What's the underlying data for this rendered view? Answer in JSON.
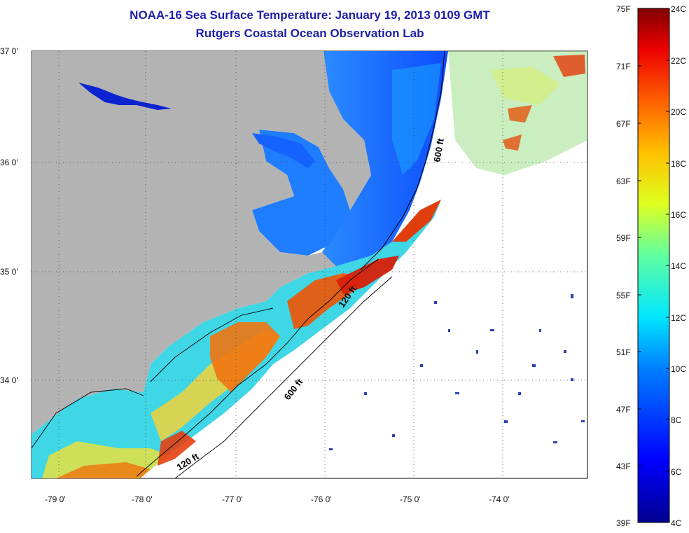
{
  "title": "NOAA-16 Sea Surface Temperature:  January 19, 2013 0109 GMT",
  "subtitle": "Rutgers Coastal Ocean Observation Lab",
  "lat_labels": [
    "37 0'",
    "36 0'",
    "35 0'",
    "34 0'"
  ],
  "lon_labels": [
    "-79 0'",
    "-78 0'",
    "-77 0'",
    "-76 0'",
    "-75 0'",
    "-74 0'"
  ],
  "contour_labels": [
    "600 ft",
    "120 ft",
    "600 ft",
    "120 ft"
  ],
  "colorbar": {
    "fahrenheit": [
      "75F",
      "71F",
      "67F",
      "63F",
      "59F",
      "55F",
      "51F",
      "47F",
      "43F",
      "39F"
    ],
    "celsius": [
      "24C",
      "22C",
      "20C",
      "18C",
      "16C",
      "14C",
      "12C",
      "10C",
      "8C",
      "6C",
      "4C"
    ]
  },
  "colors": {
    "land": "#b3b3b3",
    "title": "#1e1ea8"
  }
}
